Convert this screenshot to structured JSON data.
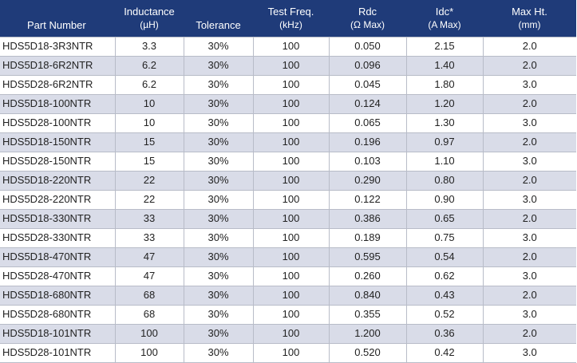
{
  "headers": [
    {
      "title": "Part Number",
      "sub": ""
    },
    {
      "title": "Inductance",
      "sub": "(µH)"
    },
    {
      "title": "Tolerance",
      "sub": ""
    },
    {
      "title": "Test Freq.",
      "sub": "(kHz)"
    },
    {
      "title": "Rdc",
      "sub": "(Ω Max)"
    },
    {
      "title": "Idc*",
      "sub": "(A Max)"
    },
    {
      "title": "Max Ht.",
      "sub": "(mm)"
    }
  ],
  "colors": {
    "header_bg": "#1f3b79",
    "row_alt": "#d9dce8"
  },
  "rows": [
    [
      "HDS5D18-3R3NTR",
      "3.3",
      "30%",
      "100",
      "0.050",
      "2.15",
      "2.0"
    ],
    [
      "HDS5D18-6R2NTR",
      "6.2",
      "30%",
      "100",
      "0.096",
      "1.40",
      "2.0"
    ],
    [
      "HDS5D28-6R2NTR",
      "6.2",
      "30%",
      "100",
      "0.045",
      "1.80",
      "3.0"
    ],
    [
      "HDS5D18-100NTR",
      "10",
      "30%",
      "100",
      "0.124",
      "1.20",
      "2.0"
    ],
    [
      "HDS5D28-100NTR",
      "10",
      "30%",
      "100",
      "0.065",
      "1.30",
      "3.0"
    ],
    [
      "HDS5D18-150NTR",
      "15",
      "30%",
      "100",
      "0.196",
      "0.97",
      "2.0"
    ],
    [
      "HDS5D28-150NTR",
      "15",
      "30%",
      "100",
      "0.103",
      "1.10",
      "3.0"
    ],
    [
      "HDS5D18-220NTR",
      "22",
      "30%",
      "100",
      "0.290",
      "0.80",
      "2.0"
    ],
    [
      "HDS5D28-220NTR",
      "22",
      "30%",
      "100",
      "0.122",
      "0.90",
      "3.0"
    ],
    [
      "HDS5D18-330NTR",
      "33",
      "30%",
      "100",
      "0.386",
      "0.65",
      "2.0"
    ],
    [
      "HDS5D28-330NTR",
      "33",
      "30%",
      "100",
      "0.189",
      "0.75",
      "3.0"
    ],
    [
      "HDS5D18-470NTR",
      "47",
      "30%",
      "100",
      "0.595",
      "0.54",
      "2.0"
    ],
    [
      "HDS5D28-470NTR",
      "47",
      "30%",
      "100",
      "0.260",
      "0.62",
      "3.0"
    ],
    [
      "HDS5D18-680NTR",
      "68",
      "30%",
      "100",
      "0.840",
      "0.43",
      "2.0"
    ],
    [
      "HDS5D28-680NTR",
      "68",
      "30%",
      "100",
      "0.355",
      "0.52",
      "3.0"
    ],
    [
      "HDS5D18-101NTR",
      "100",
      "30%",
      "100",
      "1.200",
      "0.36",
      "2.0"
    ],
    [
      "HDS5D28-101NTR",
      "100",
      "30%",
      "100",
      "0.520",
      "0.42",
      "3.0"
    ]
  ]
}
